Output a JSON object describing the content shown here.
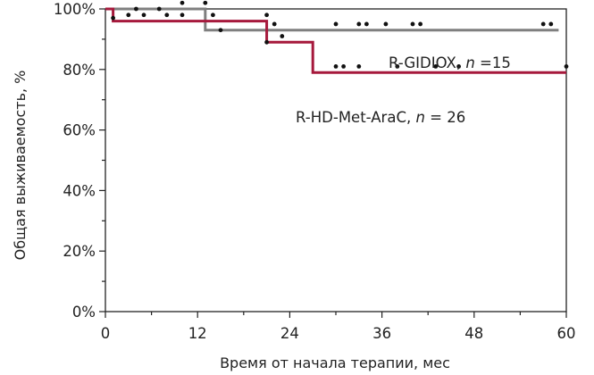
{
  "chart_data": {
    "type": "line",
    "step": true,
    "xlabel": "Время от начала терапии, мес",
    "ylabel": "Общая выживаемость, %",
    "xlim": [
      0,
      60
    ],
    "ylim": [
      0,
      100
    ],
    "x_ticks": [
      "0",
      "12",
      "24",
      "36",
      "48",
      "60"
    ],
    "y_ticks": [
      "0%",
      "20%",
      "40%",
      "60%",
      "80%",
      "100%"
    ],
    "grid": false,
    "series": [
      {
        "name": "R-GIDIOX, n =15",
        "label_parts": [
          "R-GIDIOX, ",
          "n",
          " =15"
        ],
        "color": "#7f7f7f",
        "x": [
          0,
          13,
          13,
          59
        ],
        "y": [
          100,
          100,
          93,
          93
        ],
        "censored": [
          {
            "x": 4,
            "y": 100
          },
          {
            "x": 7,
            "y": 100
          },
          {
            "x": 10,
            "y": 102
          },
          {
            "x": 15,
            "y": 93
          },
          {
            "x": 21,
            "y": 98
          },
          {
            "x": 22,
            "y": 95
          },
          {
            "x": 30,
            "y": 95
          },
          {
            "x": 33,
            "y": 95
          },
          {
            "x": 34,
            "y": 95
          },
          {
            "x": 36.5,
            "y": 95
          },
          {
            "x": 40,
            "y": 95
          },
          {
            "x": 41,
            "y": 95
          },
          {
            "x": 57,
            "y": 95
          },
          {
            "x": 58,
            "y": 95
          }
        ]
      },
      {
        "name": "R-HD-Met-AraC, n = 26",
        "label_parts": [
          "R-HD-Met-AraC, ",
          "n",
          " = 26"
        ],
        "color": "#a6193c",
        "x": [
          0,
          1,
          1,
          21,
          21,
          27,
          27,
          60
        ],
        "y": [
          100,
          100,
          96,
          96,
          89,
          89,
          79,
          79
        ],
        "censored": [
          {
            "x": 1,
            "y": 97
          },
          {
            "x": 3,
            "y": 98
          },
          {
            "x": 5,
            "y": 98
          },
          {
            "x": 8,
            "y": 98
          },
          {
            "x": 10,
            "y": 98
          },
          {
            "x": 13,
            "y": 102
          },
          {
            "x": 14,
            "y": 98
          },
          {
            "x": 21,
            "y": 89
          },
          {
            "x": 23,
            "y": 91
          },
          {
            "x": 30,
            "y": 81
          },
          {
            "x": 31,
            "y": 81
          },
          {
            "x": 33,
            "y": 81
          },
          {
            "x": 38,
            "y": 81
          },
          {
            "x": 43,
            "y": 81
          },
          {
            "x": 46,
            "y": 81
          },
          {
            "x": 60,
            "y": 81
          }
        ]
      }
    ]
  }
}
